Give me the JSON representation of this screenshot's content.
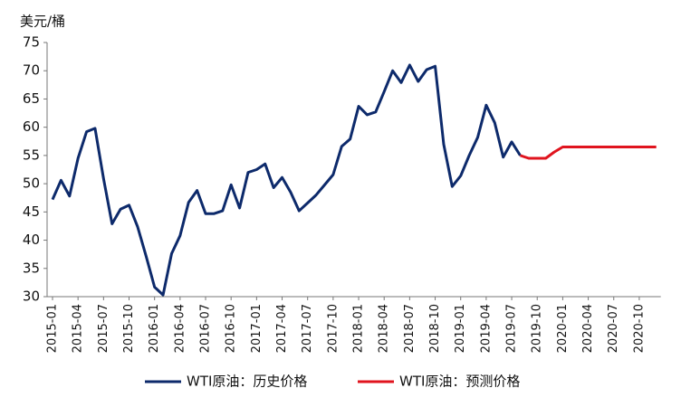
{
  "chart_data": {
    "type": "line",
    "y_axis_label": "美元/桶",
    "categories": [
      "2015-01",
      null,
      null,
      "2015-04",
      null,
      null,
      "2015-07",
      null,
      null,
      "2015-10",
      null,
      null,
      "2016-01",
      null,
      null,
      "2016-04",
      null,
      null,
      "2016-07",
      null,
      null,
      "2016-10",
      null,
      null,
      "2017-01",
      null,
      null,
      "2017-04",
      null,
      null,
      "2017-07",
      null,
      null,
      "2017-10",
      null,
      null,
      "2018-01",
      null,
      null,
      "2018-04",
      null,
      null,
      "2018-07",
      null,
      null,
      "2018-10",
      null,
      null,
      "2019-01",
      null,
      null,
      "2019-04",
      null,
      null,
      "2019-07",
      null,
      null,
      "2019-10",
      null,
      null,
      "2020-01",
      null,
      null,
      "2020-04",
      null,
      null,
      "2020-07",
      null,
      null,
      "2020-10",
      null,
      null
    ],
    "series": [
      {
        "name": "WTI原油：历史价格",
        "color": "#0d2a6b",
        "values": [
          47.2,
          50.6,
          47.8,
          54.5,
          59.2,
          59.8,
          50.9,
          42.9,
          45.5,
          46.2,
          42.4,
          37.2,
          31.7,
          30.3,
          37.6,
          40.8,
          46.7,
          48.8,
          44.7,
          44.7,
          45.2,
          49.8,
          45.7,
          52.0,
          52.5,
          53.5,
          49.3,
          51.1,
          48.5,
          45.2,
          46.6,
          48.0,
          49.8,
          51.6,
          56.6,
          57.9,
          63.7,
          62.2,
          62.7,
          66.3,
          70.0,
          67.9,
          71.0,
          68.1,
          70.2,
          70.8,
          57.0,
          49.5,
          51.4,
          55.0,
          58.2,
          63.9,
          60.8,
          54.7,
          57.4,
          55.0,
          null,
          null,
          null,
          null,
          null,
          null,
          null,
          null,
          null,
          null,
          null,
          null,
          null,
          null,
          null,
          null
        ]
      },
      {
        "name": "WTI原油：预测价格",
        "color": "#e0141e",
        "values": [
          null,
          null,
          null,
          null,
          null,
          null,
          null,
          null,
          null,
          null,
          null,
          null,
          null,
          null,
          null,
          null,
          null,
          null,
          null,
          null,
          null,
          null,
          null,
          null,
          null,
          null,
          null,
          null,
          null,
          null,
          null,
          null,
          null,
          null,
          null,
          null,
          null,
          null,
          null,
          null,
          null,
          null,
          null,
          null,
          null,
          null,
          null,
          null,
          null,
          null,
          null,
          null,
          null,
          null,
          null,
          55.0,
          54.5,
          54.5,
          54.5,
          55.6,
          56.5,
          56.5,
          56.5,
          56.5,
          56.5,
          56.5,
          56.5,
          56.5,
          56.5,
          56.5,
          56.5,
          56.5
        ]
      }
    ],
    "ylim": [
      30,
      75
    ],
    "yticks": [
      30,
      35,
      40,
      45,
      50,
      55,
      60,
      65,
      70,
      75
    ],
    "grid": false,
    "legend": "bottom"
  }
}
